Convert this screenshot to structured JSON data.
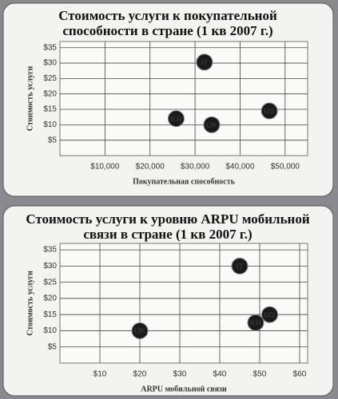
{
  "chart_data": [
    {
      "type": "scatter",
      "title": "Стоимость услуги к покупательной способности в стране (1 кв 2007 г.)",
      "xlabel": "Покупательная способность",
      "ylabel": "Стоимость услуги",
      "labels": [
        "IT",
        "KR",
        "UK",
        "US"
      ],
      "x": [
        32100,
        25800,
        33700,
        46500
      ],
      "values": [
        30.3,
        12,
        10,
        14.5
      ],
      "color": "#1a1a1a",
      "xlim": [
        0,
        55000
      ],
      "ylim": [
        0,
        37
      ],
      "xticks": [
        {
          "value": 10000,
          "label": "$10,000"
        },
        {
          "value": 20000,
          "label": "$20,000"
        },
        {
          "value": 30000,
          "label": "$30,000"
        },
        {
          "value": 40000,
          "label": "$40,000"
        },
        {
          "value": 50000,
          "label": "$50,000"
        }
      ],
      "yticks": [
        {
          "value": 5,
          "label": "$5"
        },
        {
          "value": 10,
          "label": "$10"
        },
        {
          "value": 15,
          "label": "$15"
        },
        {
          "value": 20,
          "label": "$20"
        },
        {
          "value": 25,
          "label": "$25"
        },
        {
          "value": 30,
          "label": "$30"
        },
        {
          "value": 35,
          "label": "$35"
        }
      ],
      "grid": true
    },
    {
      "type": "scatter",
      "title": "Стоимость услуги к уровню ARPU мобильной связи в стране (1 кв 2007 г.)",
      "xlabel": "ARPU мобильной связи",
      "ylabel": "Стоимость услуги",
      "labels": [
        "IT",
        "US",
        "KR",
        "UK"
      ],
      "x": [
        45,
        52.5,
        49,
        20
      ],
      "values": [
        30,
        15,
        12.5,
        10
      ],
      "color": "#1a1a1a",
      "xlim": [
        0,
        62
      ],
      "ylim": [
        0,
        37
      ],
      "xticks": [
        {
          "value": 10,
          "label": "$10"
        },
        {
          "value": 20,
          "label": "$20"
        },
        {
          "value": 30,
          "label": "$30"
        },
        {
          "value": 40,
          "label": "$40"
        },
        {
          "value": 50,
          "label": "$50"
        },
        {
          "value": 60,
          "label": "$60"
        }
      ],
      "yticks": [
        {
          "value": 5,
          "label": "$5"
        },
        {
          "value": 10,
          "label": "$10"
        },
        {
          "value": 15,
          "label": "$15"
        },
        {
          "value": 20,
          "label": "$20"
        },
        {
          "value": 25,
          "label": "$25"
        },
        {
          "value": 30,
          "label": "$30"
        },
        {
          "value": 35,
          "label": "$35"
        }
      ],
      "grid": true
    }
  ]
}
